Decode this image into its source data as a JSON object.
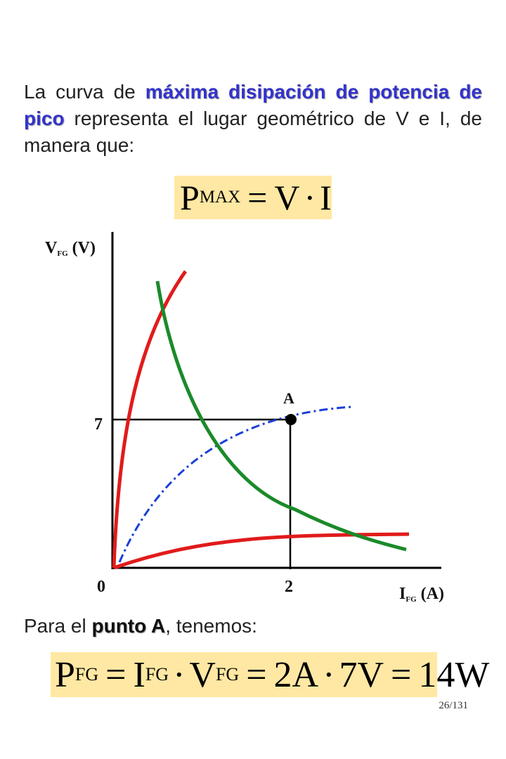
{
  "intro": {
    "before": "La curva de ",
    "highlight": "máxima disipación de potencia de pico",
    "after": " representa el lugar geométrico de V e I, de manera que:"
  },
  "formula1": {
    "lhs": "P",
    "lhs_sub": "MAX",
    "rhs_v": "V",
    "rhs_i": "I"
  },
  "chart": {
    "ylabel_main": "V",
    "ylabel_sub": "FG",
    "ylabel_unit": "(V)",
    "xlabel_main": "I",
    "xlabel_sub": "FG",
    "xlabel_unit": "(A)",
    "origin_label": "0",
    "y_tick_label": "7",
    "x_tick_label": "2",
    "point_label": "A"
  },
  "chart_data": {
    "type": "line",
    "point": {
      "name": "A",
      "x": 2,
      "y": 7
    },
    "ticks": {
      "x": [
        0,
        2
      ],
      "y": [
        0,
        7
      ]
    },
    "series": [
      {
        "color": "#e11b1b",
        "style": "solid"
      },
      {
        "color": "#e11b1b",
        "style": "solid"
      },
      {
        "color": "#1b8a2a",
        "style": "solid"
      },
      {
        "color": "#1a3fd6",
        "style": "dash-dot"
      }
    ]
  },
  "para2": {
    "before": "Para el ",
    "highlight": "punto A",
    "after": ", tenemos:"
  },
  "formula2": {
    "p": "P",
    "p_sub": "FG",
    "i": "I",
    "i_sub": "FG",
    "v": "V",
    "v_sub": "FG",
    "mid": "2A",
    "mid2": "7V",
    "result": "14W"
  },
  "slide_number": "26/131"
}
